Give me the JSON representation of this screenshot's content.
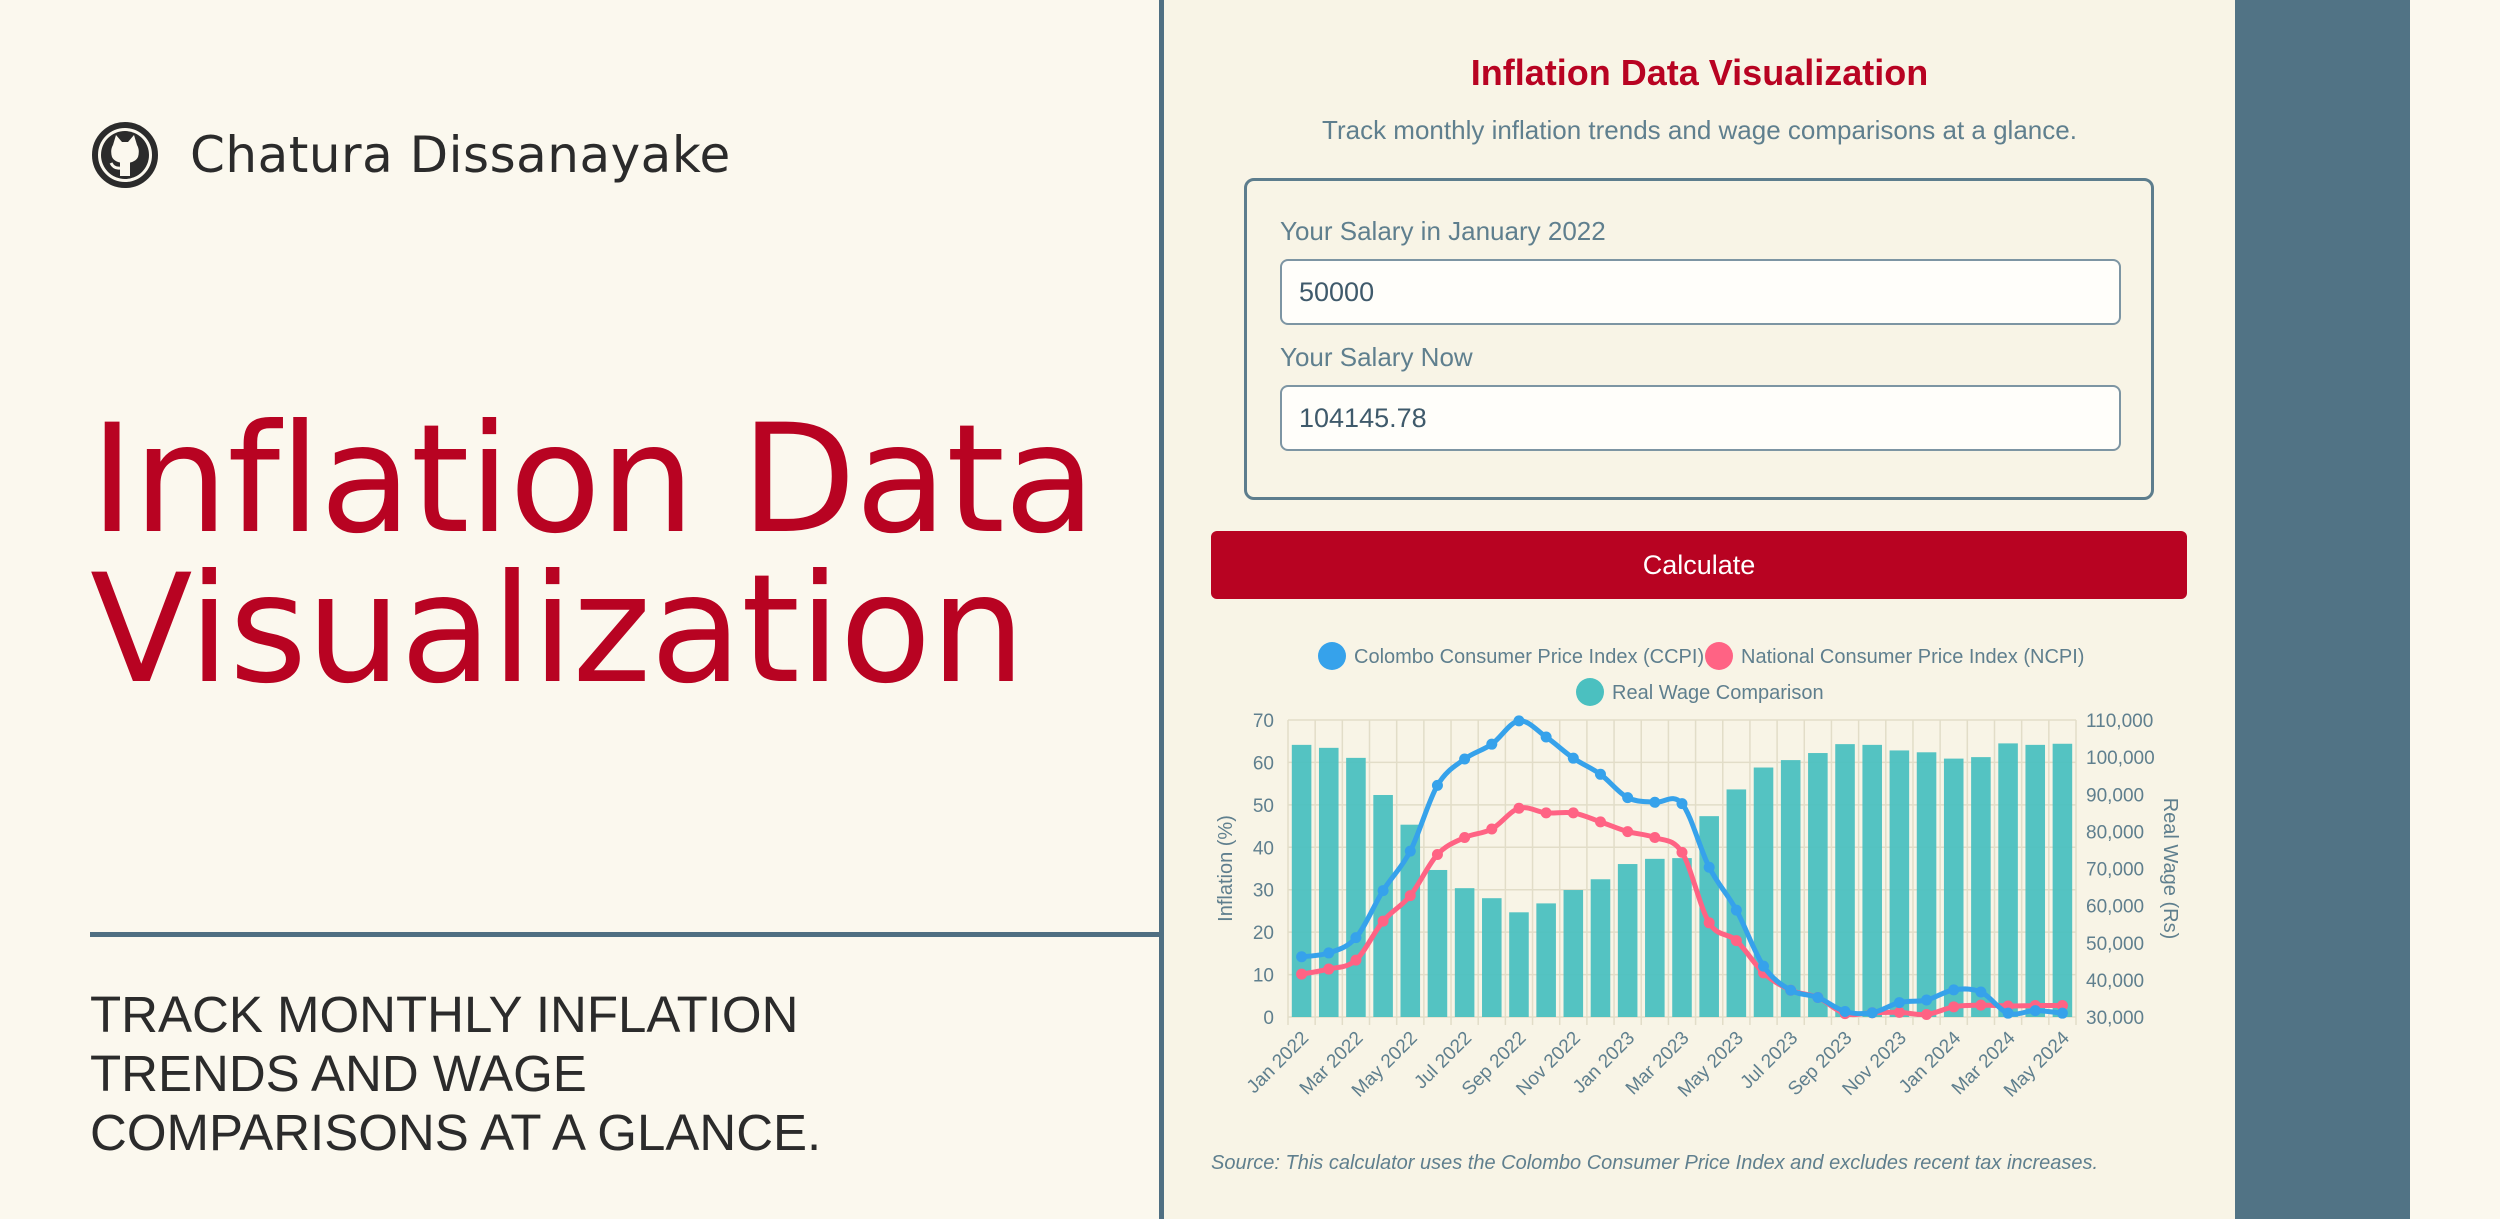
{
  "author": {
    "name": "Chatura Dissanayake",
    "icon": "github-icon"
  },
  "hero": {
    "title_line1": "Inflation Data",
    "title_line2": "Visualization",
    "tagline_line1": "TRACK MONTHLY INFLATION",
    "tagline_line2": "TRENDS AND WAGE",
    "tagline_line3": "COMPARISONS AT A GLANCE."
  },
  "app": {
    "title": "Inflation Data Visualization",
    "subtitle": "Track monthly inflation trends and wage comparisons at a glance.",
    "salary_jan_label": "Your Salary in January 2022",
    "salary_jan_value": "50000",
    "salary_now_label": "Your Salary Now",
    "salary_now_value": "104145.78",
    "calculate_label": "Calculate",
    "source": "Source: This calculator uses the Colombo Consumer Price Index and excludes recent tax increases."
  },
  "colors": {
    "brand_red": "#b80322",
    "slate": "#517385",
    "ccpi": "#36a2eb",
    "ncpi": "#ff6384",
    "real_wage": "#4bc0c0",
    "background": "#fbf8ee"
  },
  "chart_data": {
    "type": "bar",
    "legend_position": "top",
    "grid": true,
    "x": [
      "Jan 2022",
      "Feb 2022",
      "Mar 2022",
      "Apr 2022",
      "May 2022",
      "Jun 2022",
      "Jul 2022",
      "Aug 2022",
      "Sep 2022",
      "Oct 2022",
      "Nov 2022",
      "Dec 2022",
      "Jan 2023",
      "Feb 2023",
      "Mar 2023",
      "Apr 2023",
      "May 2023",
      "Jun 2023",
      "Jul 2023",
      "Aug 2023",
      "Sep 2023",
      "Oct 2023",
      "Nov 2023",
      "Dec 2023",
      "Jan 2024",
      "Feb 2024",
      "Mar 2024",
      "Apr 2024",
      "May 2024"
    ],
    "x_tick_labels": [
      "Jan 2022",
      "Mar 2022",
      "May 2022",
      "Jul 2022",
      "Sep 2022",
      "Nov 2022",
      "Jan 2023",
      "Mar 2023",
      "May 2023",
      "Jul 2023",
      "Sep 2023",
      "Nov 2023",
      "Jan 2024",
      "Mar 2024",
      "May 2024"
    ],
    "y_left": {
      "label": "Inflation (%)",
      "range": [
        0,
        70
      ],
      "ticks": [
        "0",
        "10",
        "20",
        "30",
        "40",
        "50",
        "60",
        "70"
      ]
    },
    "y_right": {
      "label": "Real Wage (Rs)",
      "range": [
        30000,
        110000
      ],
      "ticks": [
        "30,000",
        "40,000",
        "50,000",
        "60,000",
        "70,000",
        "80,000",
        "90,000",
        "100,000",
        "110,000"
      ]
    },
    "series": [
      {
        "name": "Colombo Consumer Price Index (CCPI)",
        "type": "line",
        "axis": "left",
        "values": [
          14.2,
          15.1,
          18.7,
          29.8,
          39.1,
          54.6,
          60.8,
          64.3,
          69.8,
          66.0,
          61.0,
          57.2,
          51.7,
          50.6,
          50.3,
          35.3,
          25.2,
          12.0,
          6.3,
          4.6,
          1.3,
          1.0,
          3.4,
          4.0,
          6.4,
          5.9,
          0.9,
          1.5,
          0.9
        ]
      },
      {
        "name": "National Consumer Price Index (NCPI)",
        "type": "line",
        "axis": "left",
        "values": [
          10.1,
          11.3,
          13.4,
          22.6,
          28.6,
          38.3,
          42.3,
          44.3,
          49.2,
          48.1,
          48.1,
          46.0,
          43.7,
          42.3,
          38.8,
          22.2,
          18.0,
          10.4,
          6.3,
          4.6,
          0.8,
          1.0,
          1.1,
          0.6,
          2.4,
          2.8,
          2.6,
          2.7,
          2.7
        ]
      },
      {
        "name": "Real Wage Comparison",
        "type": "bar",
        "axis": "right",
        "values": [
          103300,
          102500,
          99800,
          89800,
          81800,
          69600,
          64700,
          62000,
          58200,
          60600,
          64200,
          67100,
          71200,
          72600,
          72800,
          84100,
          91300,
          97200,
          99200,
          101100,
          103500,
          103300,
          101800,
          101300,
          99600,
          100000,
          103700,
          103300,
          103600
        ]
      }
    ]
  }
}
